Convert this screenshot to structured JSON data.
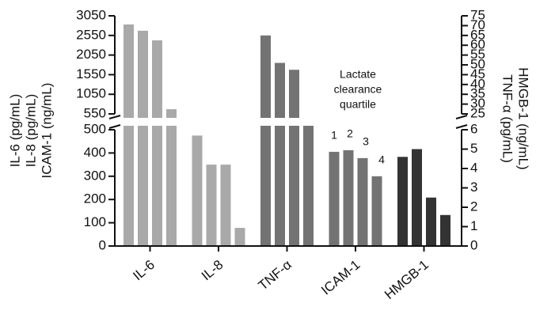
{
  "chart_data": {
    "type": "bar",
    "categories": [
      "IL-6",
      "IL-8",
      "TNF-α",
      "ICAM-1",
      "HMGB-1"
    ],
    "groups": [
      {
        "name": "IL-6",
        "color": "#a9a9a9",
        "axis": "y",
        "values": [
          2830,
          2670,
          2425,
          670
        ]
      },
      {
        "name": "IL-8",
        "color": "#a9a9a9",
        "axis": "y",
        "values": [
          475,
          350,
          350,
          78
        ]
      },
      {
        "name": "TNF-α",
        "color": "#737373",
        "axis": "y2",
        "values": [
          65,
          51,
          47.5,
          15
        ]
      },
      {
        "name": "ICAM-1",
        "color": "#737373",
        "axis": "y",
        "values": [
          405,
          412,
          378,
          300
        ]
      },
      {
        "name": "HMGB-1",
        "color": "#333333",
        "axis": "y2",
        "values": [
          4.6,
          5.0,
          2.5,
          1.6
        ]
      }
    ],
    "ylabel": [
      "IL-6 (pg/mL)",
      "IL-8 (pg/mL)",
      "ICAM-1 (ng/mL)"
    ],
    "y2label": [
      "TNF-α (pg/mL)",
      "HMGB-1 (ng/mL)"
    ],
    "annotation": [
      "Lactate",
      "clearance",
      "quartile"
    ],
    "quartile_labels": [
      "1",
      "2",
      "3",
      "4"
    ],
    "ylim": [
      0,
      3050
    ],
    "ybreak": [
      500,
      550
    ],
    "yticks": [
      0,
      100,
      200,
      300,
      400,
      500,
      550,
      1050,
      1550,
      2050,
      2550,
      3050
    ],
    "y2lim": [
      0,
      75
    ],
    "y2break": [
      6,
      25
    ],
    "y2ticks": [
      0,
      1,
      2,
      3,
      4,
      5,
      6,
      25,
      30,
      35,
      40,
      45,
      50,
      55,
      60,
      65,
      70,
      75
    ]
  }
}
